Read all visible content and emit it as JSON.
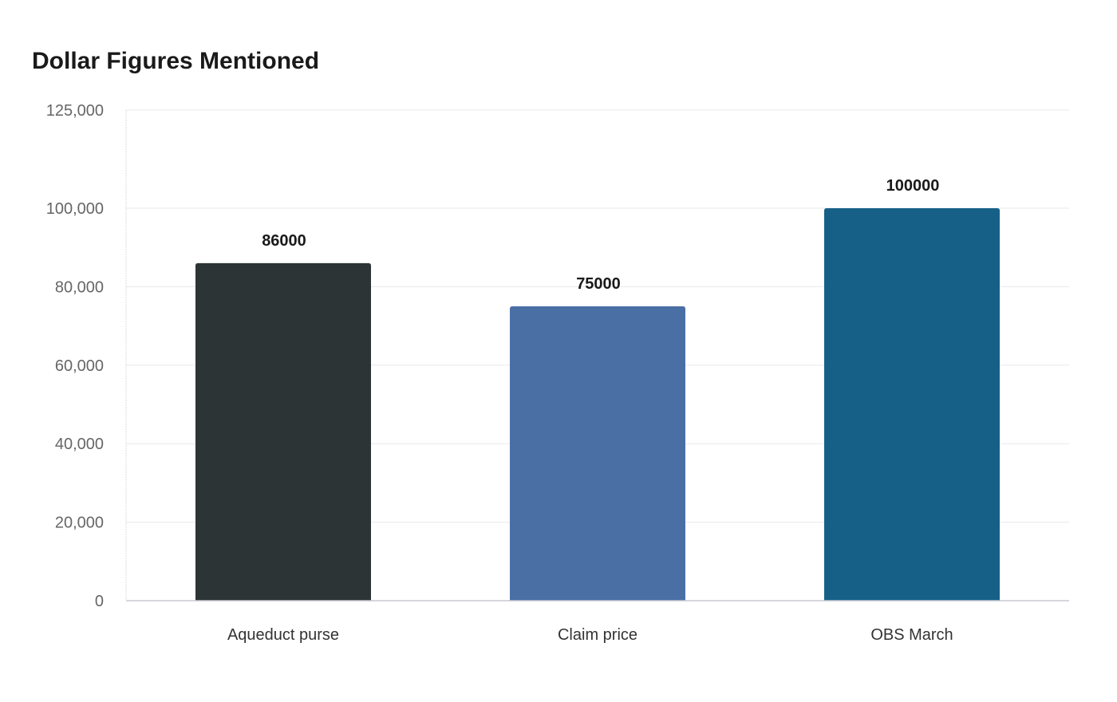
{
  "chart_data": {
    "type": "bar",
    "title": "Dollar Figures Mentioned",
    "categories": [
      "Aqueduct purse",
      "Claim price",
      "OBS March"
    ],
    "values": [
      86000,
      75000,
      100000
    ],
    "data_labels": [
      "86000",
      "75000",
      "100000"
    ],
    "colors": [
      "#2d3436",
      "#4a6fa5",
      "#166088"
    ],
    "yticks": [
      0,
      20000,
      40000,
      60000,
      80000,
      100000,
      125000
    ],
    "ytick_labels": [
      "0",
      "20,000",
      "40,000",
      "60,000",
      "80,000",
      "100,000",
      "125,000"
    ],
    "ylim": [
      0,
      125000
    ],
    "xlabel": "",
    "ylabel": "",
    "grid": true,
    "legend": "none"
  }
}
